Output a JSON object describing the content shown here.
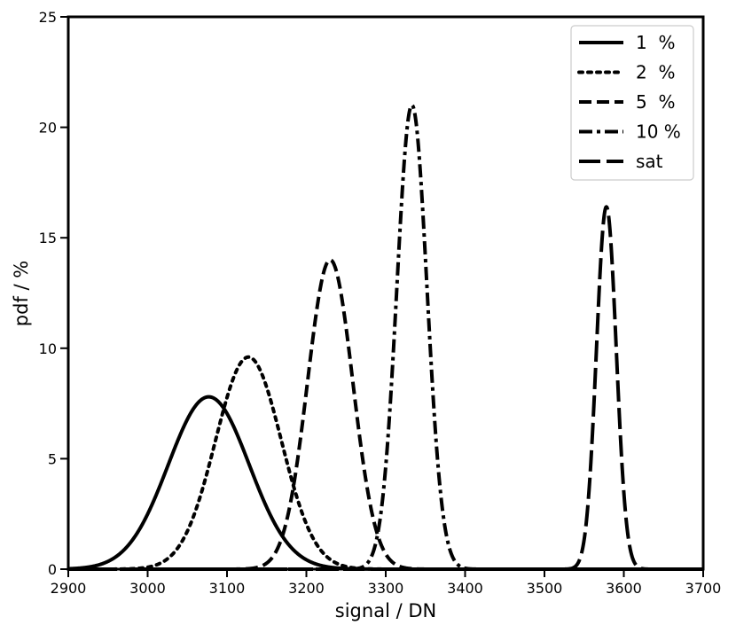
{
  "chart_data": {
    "type": "line",
    "title": "",
    "xlabel": "signal / DN",
    "ylabel": "pdf / %",
    "xlim": [
      2900,
      3700
    ],
    "ylim": [
      0,
      25
    ],
    "xticks": [
      2900,
      3000,
      3100,
      3200,
      3300,
      3400,
      3500,
      3600,
      3700
    ],
    "yticks": [
      0,
      5,
      10,
      15,
      20,
      25
    ],
    "grid": false,
    "legend_position": "top-right",
    "series": [
      {
        "name": "1  %",
        "style": "solid",
        "shape": "gaussian",
        "mean": 3077,
        "sigma": 51,
        "peak": 7.8
      },
      {
        "name": "2  %",
        "style": "dotted",
        "shape": "gaussian",
        "mean": 3127,
        "sigma": 41.5,
        "peak": 9.6
      },
      {
        "name": "5  %",
        "style": "dashed",
        "shape": "gaussian",
        "mean": 3230,
        "sigma": 28.5,
        "peak": 14.0
      },
      {
        "name": "10 %",
        "style": "dashdot",
        "shape": "gaussian",
        "mean": 3333,
        "sigma": 19,
        "peak": 21.0
      },
      {
        "name": "sat",
        "style": "longdash",
        "shape": "gaussian",
        "mean": 3578,
        "sigma": 12.5,
        "peak": 16.4
      }
    ]
  }
}
